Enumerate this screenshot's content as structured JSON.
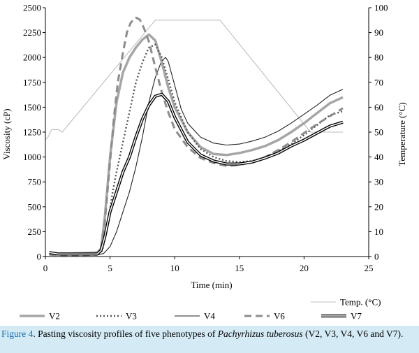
{
  "chart_data": {
    "type": "line",
    "xlabel": "Time (min)",
    "ylabel": "Viscosity (cP)",
    "y2label": "Temperature (°C)",
    "xlim": [
      0,
      25
    ],
    "ylim": [
      0,
      2500
    ],
    "y2lim": [
      0,
      100
    ],
    "xticks": [
      0,
      5,
      10,
      15,
      20,
      25
    ],
    "yticks": [
      0,
      250,
      500,
      750,
      1000,
      1250,
      1500,
      1750,
      2000,
      2250,
      2500
    ],
    "y2ticks": [
      0,
      10,
      20,
      30,
      40,
      50,
      60,
      70,
      80,
      90,
      100
    ],
    "grid": false,
    "legend_position": "bottom",
    "series": [
      {
        "name": "V2",
        "axis": "left",
        "style": "thick-gray",
        "points": [
          [
            0.3,
            40
          ],
          [
            1,
            30
          ],
          [
            2,
            30
          ],
          [
            3,
            35
          ],
          [
            4,
            40
          ],
          [
            4.3,
            80
          ],
          [
            4.6,
            400
          ],
          [
            5,
            1000
          ],
          [
            5.5,
            1550
          ],
          [
            6,
            1850
          ],
          [
            6.5,
            2000
          ],
          [
            7,
            2100
          ],
          [
            7.5,
            2180
          ],
          [
            8,
            2230
          ],
          [
            8.5,
            2170
          ],
          [
            9,
            1950
          ],
          [
            9.5,
            1700
          ],
          [
            10,
            1500
          ],
          [
            11,
            1250
          ],
          [
            12,
            1100
          ],
          [
            13,
            1030
          ],
          [
            14,
            1020
          ],
          [
            15,
            1040
          ],
          [
            16,
            1070
          ],
          [
            17,
            1110
          ],
          [
            18,
            1170
          ],
          [
            19,
            1250
          ],
          [
            20,
            1340
          ],
          [
            21,
            1440
          ],
          [
            22,
            1540
          ],
          [
            23,
            1600
          ]
        ]
      },
      {
        "name": "V3",
        "axis": "left",
        "style": "dotted",
        "points": [
          [
            0.3,
            30
          ],
          [
            1,
            25
          ],
          [
            2,
            25
          ],
          [
            3,
            30
          ],
          [
            4,
            30
          ],
          [
            4.4,
            60
          ],
          [
            4.8,
            300
          ],
          [
            5.2,
            650
          ],
          [
            5.5,
            850
          ],
          [
            6,
            1150
          ],
          [
            6.5,
            1450
          ],
          [
            7,
            1750
          ],
          [
            7.5,
            1950
          ],
          [
            8,
            2100
          ],
          [
            8.5,
            2130
          ],
          [
            9,
            2000
          ],
          [
            9.5,
            1780
          ],
          [
            10,
            1550
          ],
          [
            11,
            1250
          ],
          [
            12,
            1080
          ],
          [
            13,
            1000
          ],
          [
            14,
            960
          ],
          [
            15,
            950
          ],
          [
            16,
            960
          ],
          [
            17,
            1000
          ],
          [
            18,
            1060
          ],
          [
            19,
            1130
          ],
          [
            20,
            1220
          ],
          [
            21,
            1320
          ],
          [
            22,
            1420
          ],
          [
            23,
            1460
          ]
        ]
      },
      {
        "name": "V4",
        "axis": "left",
        "style": "thin-black",
        "points": [
          [
            0.3,
            20
          ],
          [
            1,
            15
          ],
          [
            2,
            15
          ],
          [
            3,
            15
          ],
          [
            4,
            15
          ],
          [
            4.5,
            30
          ],
          [
            5,
            100
          ],
          [
            5.5,
            250
          ],
          [
            6,
            450
          ],
          [
            6.5,
            650
          ],
          [
            7,
            900
          ],
          [
            7.5,
            1200
          ],
          [
            8,
            1550
          ],
          [
            8.5,
            1800
          ],
          [
            9,
            1970
          ],
          [
            9.3,
            2000
          ],
          [
            9.5,
            1960
          ],
          [
            10,
            1720
          ],
          [
            10.5,
            1480
          ],
          [
            11,
            1340
          ],
          [
            12,
            1200
          ],
          [
            13,
            1140
          ],
          [
            14,
            1120
          ],
          [
            15,
            1130
          ],
          [
            16,
            1160
          ],
          [
            17,
            1200
          ],
          [
            18,
            1260
          ],
          [
            19,
            1340
          ],
          [
            20,
            1430
          ],
          [
            21,
            1520
          ],
          [
            22,
            1620
          ],
          [
            23,
            1680
          ]
        ]
      },
      {
        "name": "V6",
        "axis": "left",
        "style": "dashed",
        "points": [
          [
            0.3,
            20
          ],
          [
            1,
            15
          ],
          [
            2,
            15
          ],
          [
            3,
            15
          ],
          [
            4,
            20
          ],
          [
            4.3,
            60
          ],
          [
            4.6,
            350
          ],
          [
            5,
            950
          ],
          [
            5.3,
            1400
          ],
          [
            5.6,
            1750
          ],
          [
            6,
            2050
          ],
          [
            6.3,
            2250
          ],
          [
            6.6,
            2350
          ],
          [
            7,
            2400
          ],
          [
            7.3,
            2380
          ],
          [
            7.6,
            2300
          ],
          [
            8,
            2160
          ],
          [
            8.5,
            1900
          ],
          [
            9,
            1650
          ],
          [
            9.5,
            1450
          ],
          [
            10,
            1280
          ],
          [
            11,
            1100
          ],
          [
            12,
            990
          ],
          [
            13,
            940
          ],
          [
            14,
            910
          ],
          [
            15,
            920
          ],
          [
            16,
            950
          ],
          [
            17,
            1000
          ],
          [
            18,
            1070
          ],
          [
            19,
            1150
          ],
          [
            20,
            1240
          ],
          [
            21,
            1330
          ],
          [
            22,
            1410
          ],
          [
            23,
            1490
          ]
        ]
      },
      {
        "name": "V7",
        "axis": "left",
        "style": "double",
        "points": [
          [
            0.3,
            40
          ],
          [
            1,
            25
          ],
          [
            2,
            25
          ],
          [
            3,
            25
          ],
          [
            4,
            25
          ],
          [
            4.3,
            60
          ],
          [
            4.6,
            200
          ],
          [
            5,
            450
          ],
          [
            5.5,
            650
          ],
          [
            6,
            850
          ],
          [
            6.5,
            1000
          ],
          [
            7,
            1200
          ],
          [
            7.5,
            1380
          ],
          [
            8,
            1520
          ],
          [
            8.5,
            1610
          ],
          [
            9,
            1630
          ],
          [
            9.5,
            1560
          ],
          [
            10,
            1400
          ],
          [
            11,
            1150
          ],
          [
            12,
            1020
          ],
          [
            13,
            960
          ],
          [
            14,
            930
          ],
          [
            15,
            930
          ],
          [
            16,
            950
          ],
          [
            17,
            990
          ],
          [
            18,
            1040
          ],
          [
            19,
            1110
          ],
          [
            20,
            1170
          ],
          [
            21,
            1240
          ],
          [
            22,
            1310
          ],
          [
            23,
            1350
          ]
        ]
      },
      {
        "name": "Temp. (°C)",
        "axis": "right",
        "style": "thin-gray",
        "points": [
          [
            0,
            47
          ],
          [
            0.2,
            48
          ],
          [
            0.5,
            51
          ],
          [
            1,
            51
          ],
          [
            1.3,
            50
          ],
          [
            8.5,
            95
          ],
          [
            13.5,
            95
          ],
          [
            20.5,
            50
          ],
          [
            23,
            50
          ]
        ]
      }
    ]
  },
  "caption": {
    "label": "Figure 4",
    "text_before": ". Pasting viscosity profiles of five phenotypes of ",
    "italic": "Pachyrhizus tuberosus",
    "text_after": " (V2, V3, V4, V6 and V7)."
  }
}
